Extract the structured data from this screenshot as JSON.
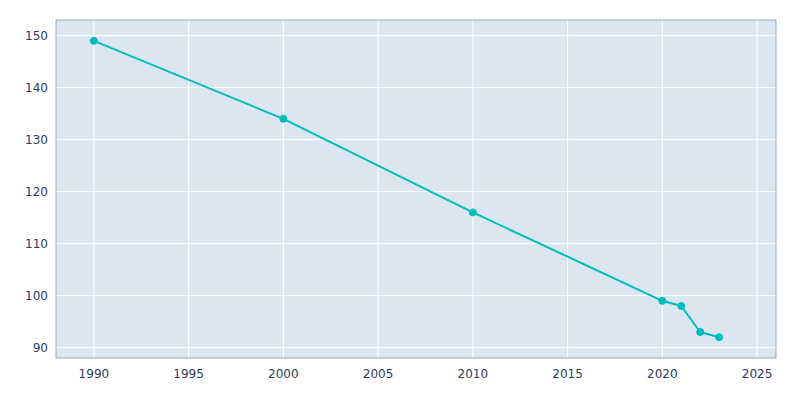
{
  "chart_data": {
    "type": "line",
    "x": [
      1990,
      2000,
      2010,
      2020,
      2021,
      2022,
      2023
    ],
    "series": [
      {
        "color": "#00BCBE",
        "marker": "circle",
        "values": [
          149,
          134,
          116,
          99,
          98,
          93,
          92
        ]
      }
    ],
    "xlim": [
      1988,
      2026
    ],
    "ylim": [
      88,
      153
    ],
    "xticks": [
      1990,
      1995,
      2000,
      2005,
      2010,
      2015,
      2020,
      2025
    ],
    "yticks": [
      90,
      100,
      110,
      120,
      130,
      140,
      150
    ],
    "grid": true
  }
}
